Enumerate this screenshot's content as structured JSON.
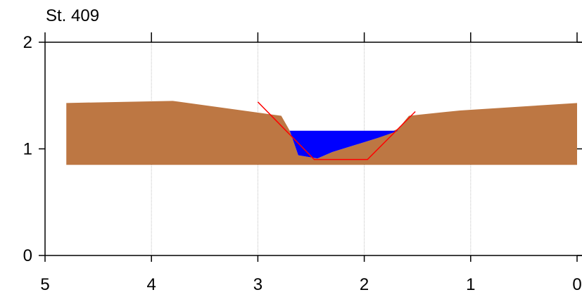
{
  "chart_data": {
    "type": "area",
    "title": "St. 409",
    "xlabel": "",
    "ylabel": "",
    "xlim": [
      5,
      0
    ],
    "ylim": [
      0,
      2
    ],
    "x_ticks": [
      "5",
      "4",
      "3",
      "2",
      "1",
      "0"
    ],
    "y_ticks": [
      "0",
      "1",
      "2"
    ],
    "grid": "vertical",
    "colors": {
      "terrain": "#bd7743",
      "water": "#0000ff",
      "design": "#ff0000",
      "grid": "#c0c0c0"
    },
    "terrain": {
      "base": 0.85,
      "points": [
        [
          4.8,
          1.43
        ],
        [
          3.8,
          1.45
        ],
        [
          2.78,
          1.31
        ],
        [
          2.7,
          1.17
        ],
        [
          2.62,
          0.94
        ],
        [
          2.44,
          0.91
        ],
        [
          2.3,
          0.97
        ],
        [
          1.88,
          1.1
        ],
        [
          1.68,
          1.19
        ],
        [
          1.58,
          1.31
        ],
        [
          1.1,
          1.36
        ],
        [
          0,
          1.43
        ]
      ]
    },
    "water": {
      "points": [
        [
          2.7,
          1.17
        ],
        [
          1.68,
          1.17
        ],
        [
          1.88,
          1.1
        ],
        [
          2.3,
          0.97
        ],
        [
          2.44,
          0.91
        ],
        [
          2.62,
          0.94
        ]
      ]
    },
    "design_section": {
      "points": [
        [
          3.0,
          1.44
        ],
        [
          2.47,
          0.9
        ],
        [
          1.97,
          0.9
        ],
        [
          1.52,
          1.35
        ]
      ]
    }
  }
}
